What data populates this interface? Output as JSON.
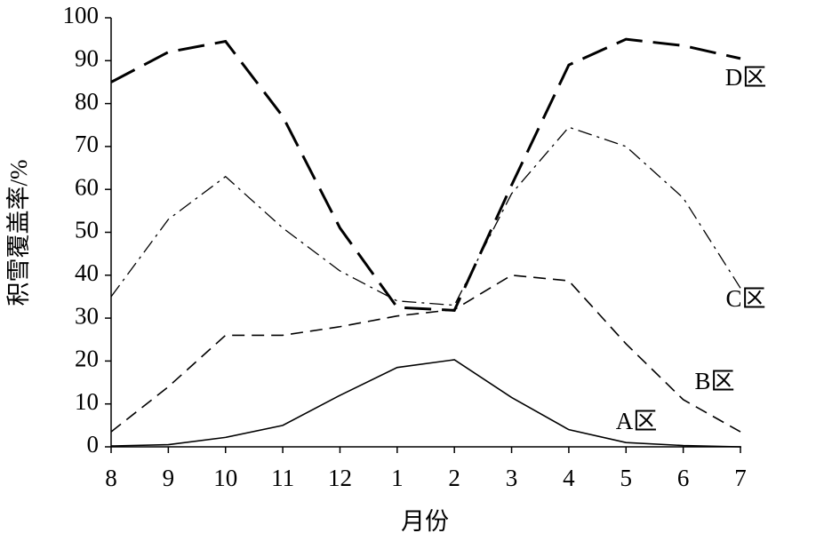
{
  "chart_data": {
    "type": "line",
    "x_label": "月份",
    "y_label": "积雪覆盖率/%",
    "categories": [
      "8",
      "9",
      "10",
      "11",
      "12",
      "1",
      "2",
      "3",
      "4",
      "5",
      "6",
      "7"
    ],
    "ylim": [
      0,
      100
    ],
    "yticks": [
      0,
      10,
      20,
      30,
      40,
      50,
      60,
      70,
      80,
      90,
      100
    ],
    "grid": false,
    "series": [
      {
        "name": "A区",
        "color": "#000000",
        "dash": "solid",
        "values": [
          0.2,
          0.5,
          2.2,
          5,
          12,
          18.5,
          20.3,
          11.5,
          4,
          1,
          0.3,
          0
        ]
      },
      {
        "name": "B区",
        "color": "#000000",
        "dash": "dashed",
        "values": [
          3.5,
          14,
          26,
          26,
          28,
          30.5,
          32,
          40,
          38.7,
          24,
          11,
          3.5
        ]
      },
      {
        "name": "C区",
        "color": "#000000",
        "dash": "dashdot",
        "values": [
          35,
          53,
          63,
          51,
          41,
          34,
          33,
          59,
          74.5,
          70,
          58,
          37
        ]
      },
      {
        "name": "D区",
        "color": "#000000",
        "dash": "longdash",
        "values": [
          85,
          92,
          94.5,
          77,
          51,
          32.5,
          31.8,
          61,
          89,
          95,
          93.5,
          90.5
        ]
      }
    ]
  }
}
